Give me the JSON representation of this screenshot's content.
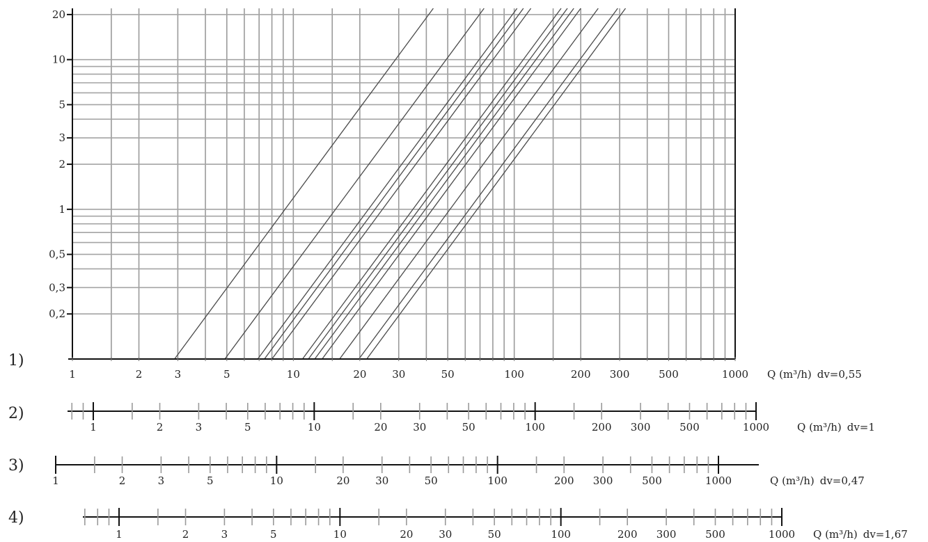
{
  "chart_data": {
    "type": "line",
    "title": "",
    "xscale": "log",
    "yscale": "log",
    "xlim": [
      1,
      1000
    ],
    "ylim": [
      0.1,
      22
    ],
    "grid": true,
    "y_tick_labels": [
      {
        "value": 20,
        "label": "20"
      },
      {
        "value": 10,
        "label": "10"
      },
      {
        "value": 5,
        "label": "5"
      },
      {
        "value": 3,
        "label": "3"
      },
      {
        "value": 2,
        "label": "2"
      },
      {
        "value": 1,
        "label": "1"
      },
      {
        "value": 0.5,
        "label": "0,5"
      },
      {
        "value": 0.3,
        "label": "0,3"
      },
      {
        "value": 0.2,
        "label": "0,2"
      }
    ],
    "series": [
      {
        "x": [
          2.9,
          43
        ],
        "y": [
          0.1,
          22
        ]
      },
      {
        "x": [
          4.9,
          73
        ],
        "y": [
          0.1,
          22
        ]
      },
      {
        "x": [
          6.9,
          103
        ],
        "y": [
          0.1,
          22
        ]
      },
      {
        "x": [
          7.4,
          110
        ],
        "y": [
          0.1,
          22
        ]
      },
      {
        "x": [
          8.0,
          119
        ],
        "y": [
          0.1,
          22
        ]
      },
      {
        "x": [
          11.0,
          163
        ],
        "y": [
          0.1,
          22
        ]
      },
      {
        "x": [
          11.7,
          174
        ],
        "y": [
          0.1,
          22
        ]
      },
      {
        "x": [
          12.5,
          186
        ],
        "y": [
          0.1,
          22
        ]
      },
      {
        "x": [
          13.5,
          200
        ],
        "y": [
          0.1,
          22
        ]
      },
      {
        "x": [
          16.2,
          240
        ],
        "y": [
          0.1,
          22
        ]
      },
      {
        "x": [
          19.8,
          294
        ],
        "y": [
          0.1,
          22
        ]
      },
      {
        "x": [
          21.5,
          319
        ],
        "y": [
          0.1,
          22
        ]
      }
    ],
    "x_scales": [
      {
        "row": "1)",
        "x_tick_labels": [
          "1",
          "2",
          "3",
          "5",
          "10",
          "20",
          "30",
          "50",
          "100",
          "200",
          "300",
          "500",
          "1000"
        ],
        "unit": "Q (m³/h)",
        "dv": "dv=0,55"
      },
      {
        "row": "2)",
        "x_tick_labels": [
          "1",
          "2",
          "3",
          "5",
          "10",
          "20",
          "30",
          "50",
          "100",
          "200",
          "300",
          "500",
          "1000"
        ],
        "unit": "Q (m³/h)",
        "dv": "dv=1"
      },
      {
        "row": "3)",
        "x_tick_labels": [
          "1",
          "2",
          "3",
          "5",
          "10",
          "20",
          "30",
          "50",
          "100",
          "200",
          "300",
          "500",
          "1000"
        ],
        "unit": "Q (m³/h)",
        "dv": "dv=0,47"
      },
      {
        "row": "4)",
        "x_tick_labels": [
          "1",
          "2",
          "3",
          "5",
          "10",
          "20",
          "30",
          "50",
          "100",
          "200",
          "300",
          "500",
          "1000"
        ],
        "unit": "Q (m³/h)",
        "dv": "dv=1,67"
      }
    ]
  }
}
